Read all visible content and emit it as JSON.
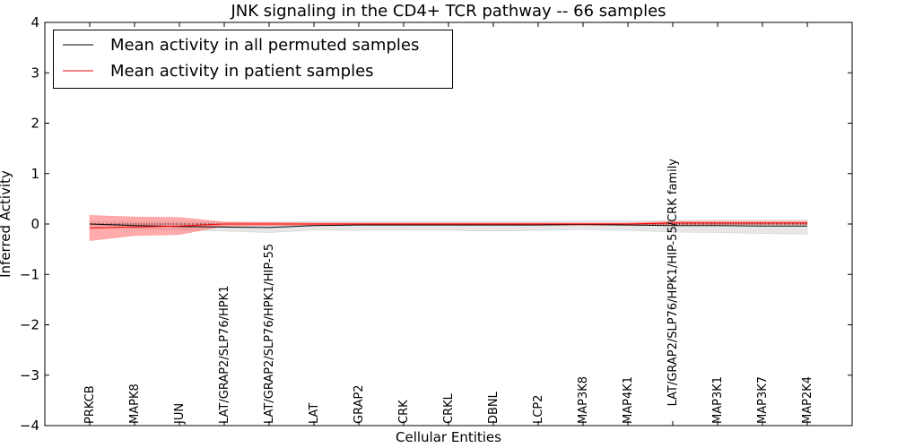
{
  "chart_data": {
    "type": "line",
    "title": "JNK signaling in the CD4+ TCR pathway -- 66 samples",
    "xlabel": "Cellular Entities",
    "ylabel": "Inferred Activity",
    "ylim": [
      -4,
      4
    ],
    "yticks": [
      -4,
      -3,
      -2,
      -1,
      0,
      1,
      2,
      3,
      4
    ],
    "ytick_labels": [
      "−4",
      "−3",
      "−2",
      "−1",
      "0",
      "1",
      "2",
      "3",
      "4"
    ],
    "grid": false,
    "legend_position": "top-left",
    "categories": [
      "PRKCB",
      "MAPK8",
      "JUN",
      "LAT/GRAP2/SLP76/HPK1",
      "LAT/GRAP2/SLP76/HPK1/HIP-55",
      "LAT",
      "GRAP2",
      "CRK",
      "CRKL",
      "DBNL",
      "LCP2",
      "MAP3K8",
      "MAP4K1",
      "LAT/GRAP2/SLP76/HPK1/HIP-55/CRK family",
      "MAP3K1",
      "MAP3K7",
      "MAP2K4"
    ],
    "category_label_anchor": [
      "bottom",
      "bottom",
      "bottom",
      "bottom",
      "bottom",
      "bottom",
      "bottom",
      "bottom",
      "bottom",
      "bottom",
      "bottom",
      "bottom",
      "bottom",
      "top",
      "bottom",
      "bottom",
      "bottom"
    ],
    "series": [
      {
        "name": "Mean activity in all permuted samples",
        "color": "#000000",
        "values": [
          0.0,
          -0.03,
          -0.05,
          -0.06,
          -0.07,
          -0.03,
          -0.02,
          -0.02,
          -0.02,
          -0.02,
          -0.02,
          -0.01,
          -0.02,
          -0.03,
          -0.03,
          -0.04,
          -0.04
        ],
        "band_lower": [
          -0.05,
          -0.1,
          -0.12,
          -0.14,
          -0.17,
          -0.12,
          -0.13,
          -0.12,
          -0.13,
          -0.14,
          -0.13,
          -0.11,
          -0.13,
          -0.16,
          -0.17,
          -0.19,
          -0.2
        ],
        "band_upper": [
          0.05,
          0.05,
          0.04,
          0.04,
          0.04,
          0.05,
          0.05,
          0.05,
          0.05,
          0.05,
          0.05,
          0.06,
          0.06,
          0.07,
          0.08,
          0.08,
          0.08
        ],
        "band_color": "#bbbbbb"
      },
      {
        "name": "Mean activity in patient samples",
        "color": "#ff0000",
        "values": [
          -0.08,
          -0.06,
          -0.04,
          0.0,
          0.0,
          0.0,
          0.0,
          0.0,
          0.0,
          0.0,
          0.0,
          0.0,
          0.0,
          0.02,
          0.02,
          0.02,
          0.02
        ],
        "band_lower": [
          -0.33,
          -0.23,
          -0.21,
          -0.04,
          -0.03,
          -0.02,
          -0.02,
          -0.02,
          -0.02,
          -0.02,
          -0.02,
          -0.02,
          -0.02,
          -0.01,
          -0.01,
          -0.01,
          -0.01
        ],
        "band_upper": [
          0.17,
          0.14,
          0.13,
          0.04,
          0.03,
          0.02,
          0.02,
          0.02,
          0.02,
          0.02,
          0.02,
          0.02,
          0.02,
          0.05,
          0.05,
          0.05,
          0.05
        ],
        "band_color": "#ff6666"
      }
    ],
    "reference_line": {
      "y": 0,
      "style": "dotted",
      "color": "#000000"
    }
  }
}
